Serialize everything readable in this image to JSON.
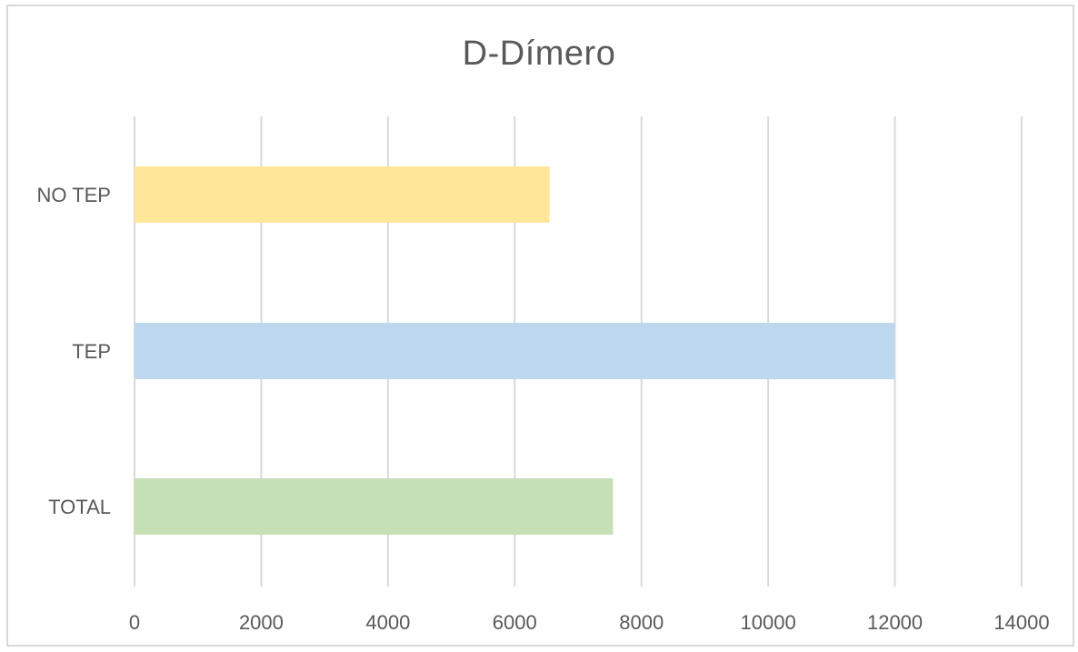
{
  "chart_data": {
    "type": "bar",
    "orientation": "horizontal",
    "title": "D-Dímero",
    "xlabel": "",
    "ylabel": "",
    "categories": [
      "NO TEP",
      "TEP",
      "TOTAL"
    ],
    "values": [
      6550,
      12000,
      7550
    ],
    "colors": [
      "#ffe699",
      "#bdd7ee",
      "#c5e0b4"
    ],
    "xlim": [
      0,
      14000
    ],
    "ticks": [
      0,
      2000,
      4000,
      6000,
      8000,
      10000,
      12000,
      14000
    ],
    "grid": true,
    "legend": "none"
  }
}
